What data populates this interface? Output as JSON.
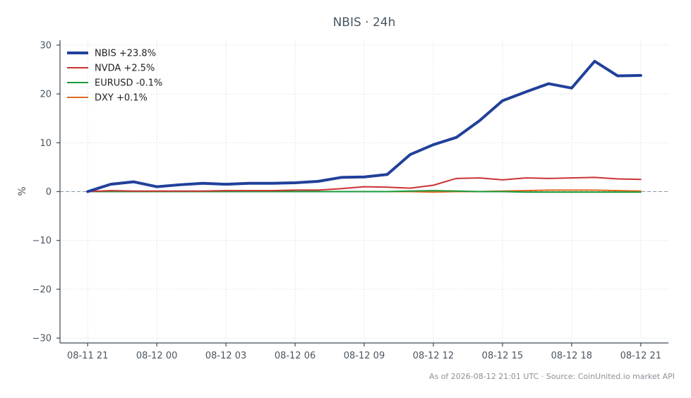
{
  "chart_data": {
    "type": "line",
    "title": "NBIS · 24h",
    "ylabel": "%",
    "xlabel": "",
    "ylim": [
      -31,
      31
    ],
    "yticks": [
      30,
      20,
      10,
      0,
      -10,
      -20,
      -30
    ],
    "ytick_labels": [
      "30",
      "20",
      "10",
      "0",
      "−10",
      "−20",
      "−30"
    ],
    "x_hours_range": [
      -1.2,
      25.2
    ],
    "xticks": [
      {
        "label": "08-11 21",
        "x": 0
      },
      {
        "label": "08-12 00",
        "x": 3
      },
      {
        "label": "08-12 03",
        "x": 6
      },
      {
        "label": "08-12 06",
        "x": 9
      },
      {
        "label": "08-12 09",
        "x": 12
      },
      {
        "label": "08-12 12",
        "x": 15
      },
      {
        "label": "08-12 15",
        "x": 18
      },
      {
        "label": "08-12 18",
        "x": 21
      },
      {
        "label": "08-12 21",
        "x": 24
      }
    ],
    "x": [
      0,
      1,
      2,
      3,
      4,
      5,
      6,
      7,
      8,
      9,
      10,
      11,
      12,
      13,
      14,
      15,
      16,
      17,
      18,
      19,
      20,
      21,
      22,
      23,
      24
    ],
    "zero_line": true,
    "grid": true,
    "legend_position": "top-left",
    "series": [
      {
        "name": "NBIS +23.8%",
        "color": "#21409a",
        "width": 4,
        "values": [
          0,
          1.5,
          2.0,
          1.0,
          1.4,
          1.7,
          1.5,
          1.7,
          1.7,
          1.8,
          2.1,
          2.9,
          3.0,
          3.5,
          7.6,
          9.6,
          11.1,
          14.5,
          18.6,
          20.4,
          22.1,
          21.2,
          26.7,
          23.7,
          23.8
        ]
      },
      {
        "name": "NVDA +2.5%",
        "color": "#cc3333",
        "width": 2,
        "values": [
          0,
          0.2,
          0.1,
          0.1,
          0.1,
          0.1,
          0.2,
          0.2,
          0.2,
          0.3,
          0.3,
          0.6,
          1.0,
          0.9,
          0.7,
          1.3,
          2.7,
          2.8,
          2.4,
          2.8,
          2.7,
          2.8,
          2.9,
          2.6,
          2.5
        ]
      },
      {
        "name": "EURUSD -0.1%",
        "color": "#1a9a3a",
        "width": 2,
        "values": [
          0,
          0,
          0,
          0,
          0,
          0,
          0,
          0,
          0,
          0,
          0,
          0,
          0,
          0,
          0.1,
          0.2,
          0.1,
          0,
          0,
          -0.1,
          -0.1,
          -0.1,
          -0.1,
          -0.1,
          -0.1
        ]
      },
      {
        "name": "DXY +0.1%",
        "color": "#e06a1f",
        "width": 2,
        "values": [
          0,
          0,
          0,
          0,
          0,
          0,
          0,
          0,
          0,
          0,
          0,
          0,
          0,
          0,
          0,
          -0.1,
          0,
          0,
          0.1,
          0.2,
          0.3,
          0.3,
          0.3,
          0.2,
          0.1
        ]
      }
    ]
  },
  "footer": "As of 2026-08-12 21:01 UTC · Source: CoinUnited.io market API"
}
